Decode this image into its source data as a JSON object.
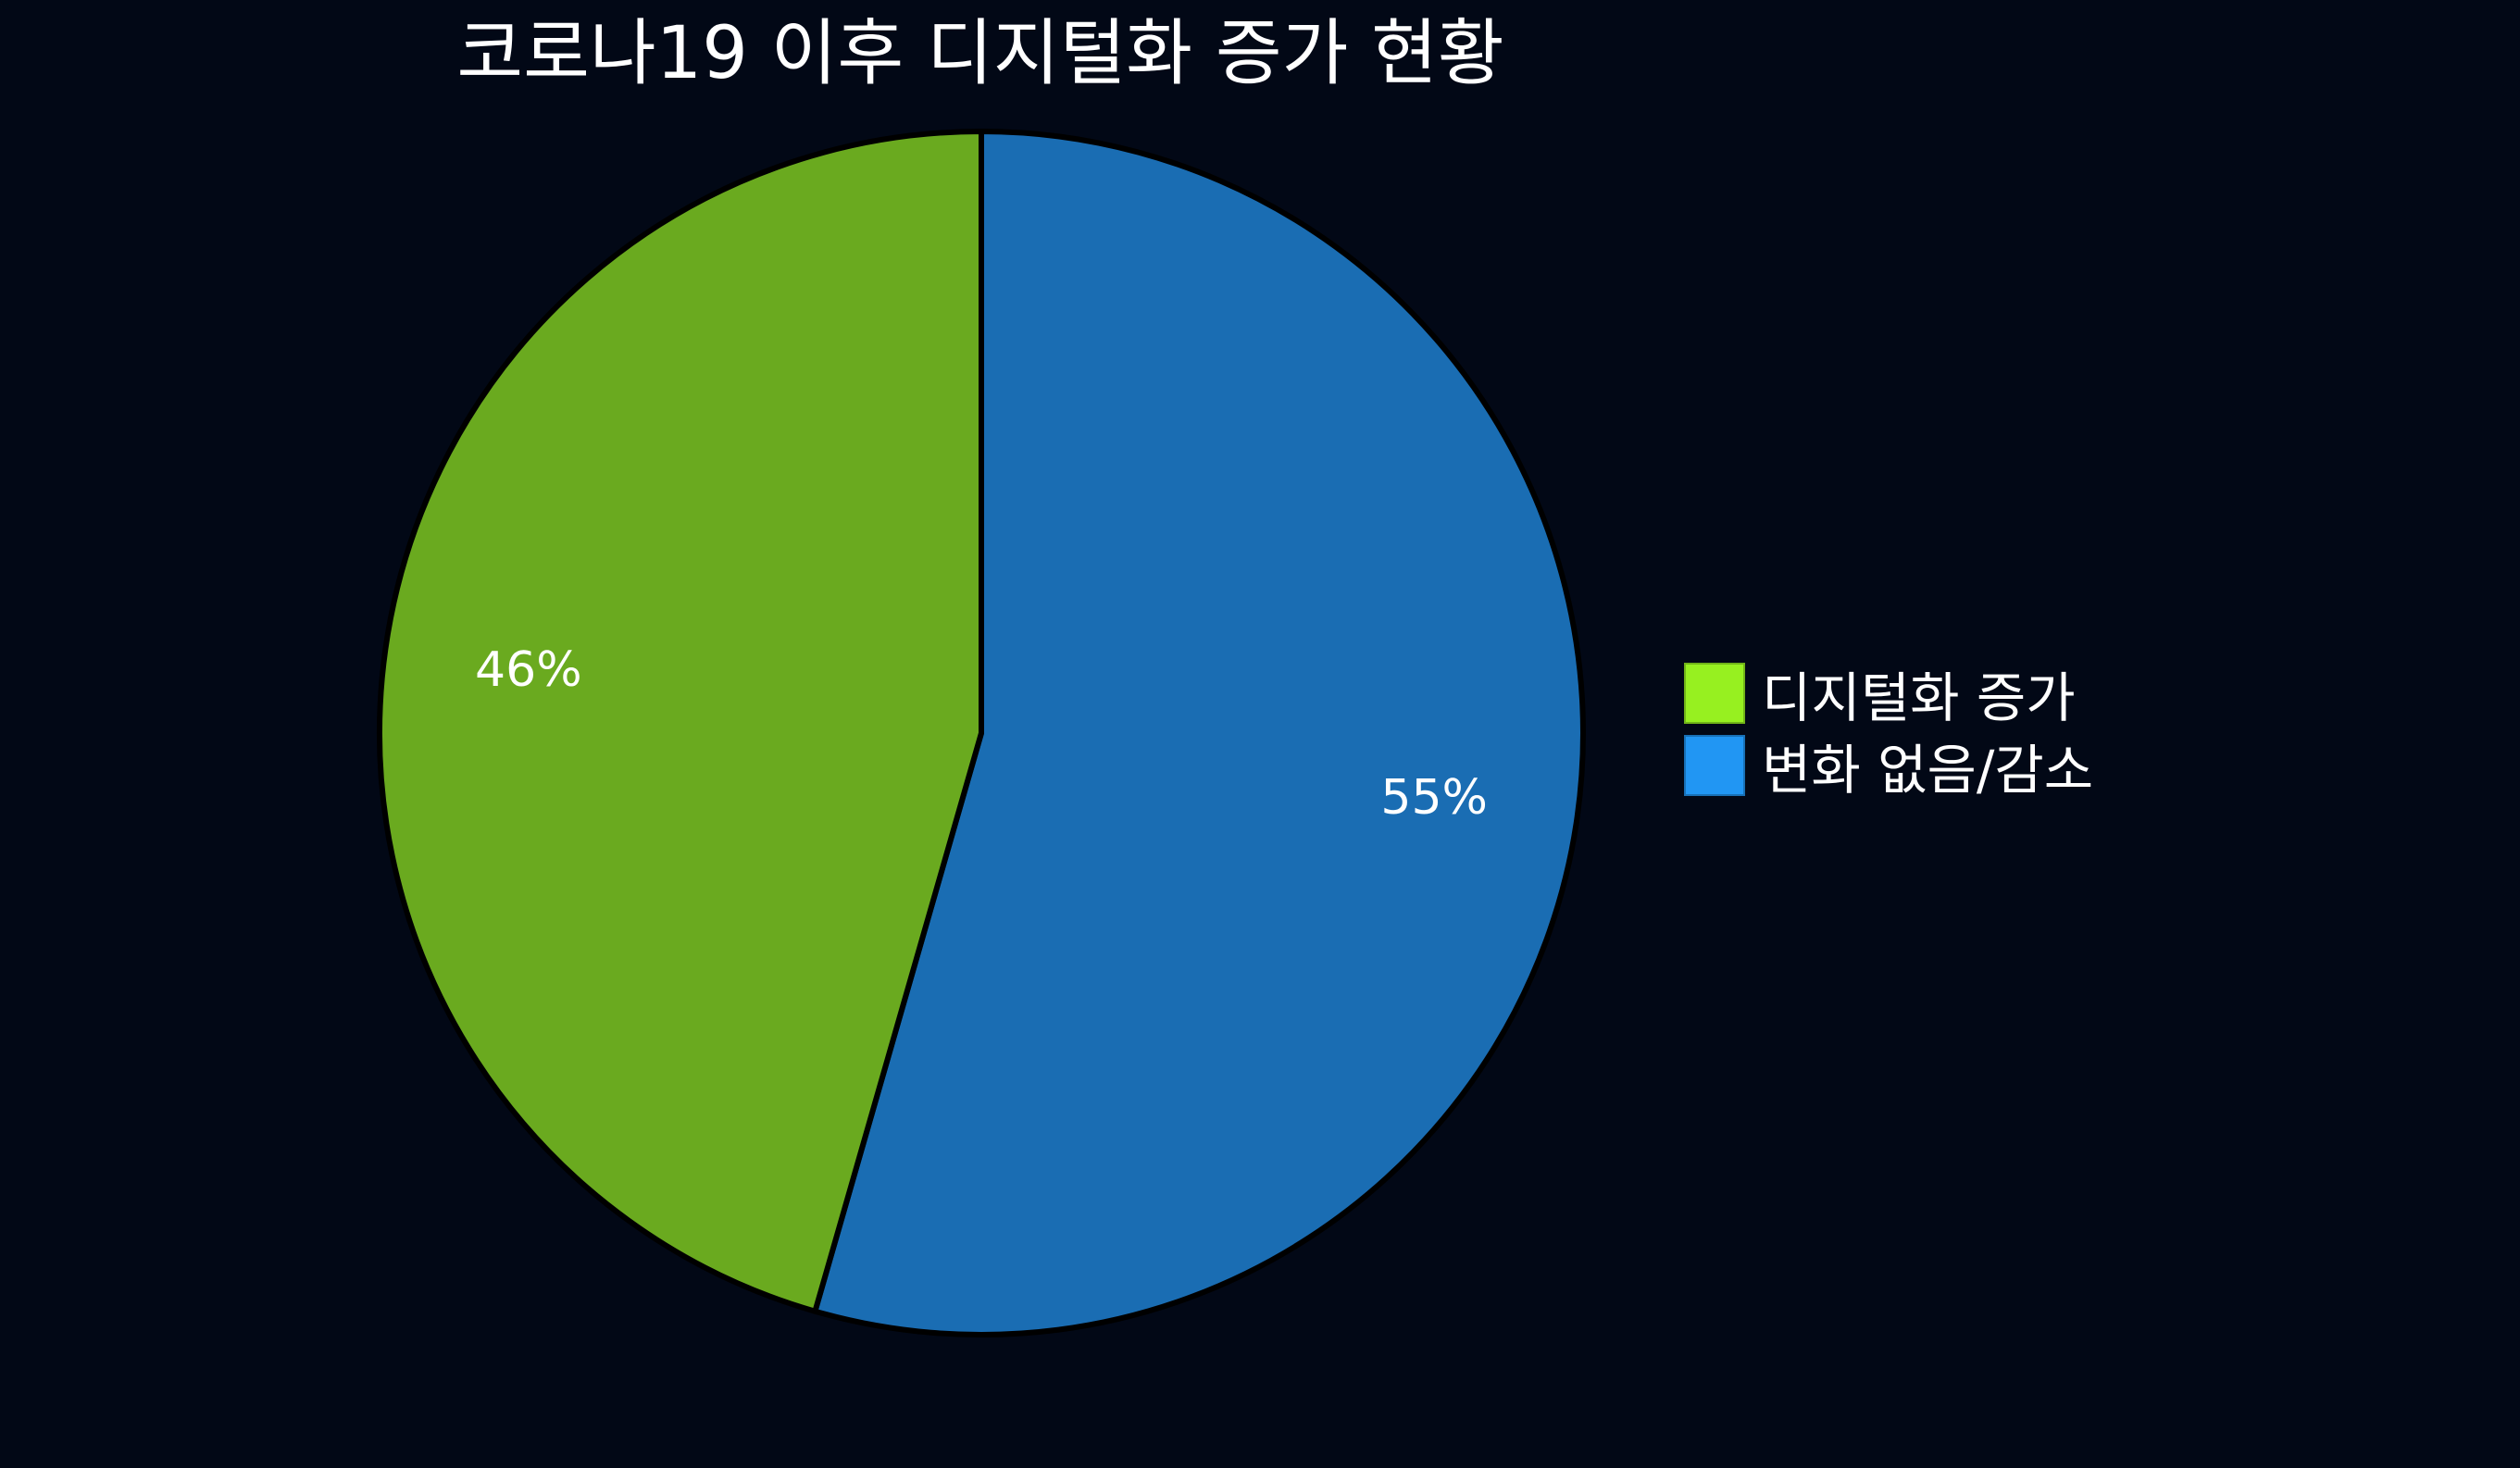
{
  "chart_data": {
    "type": "pie",
    "title": "코로나19 이후 디지털화 증가 현황",
    "slices": [
      {
        "label": "변화 없음/감소",
        "value": 55,
        "data_label": "55%",
        "color": "#1a6db3",
        "legend_color": "#2196f3"
      },
      {
        "label": "디지털화 증가",
        "value": 46,
        "data_label": "46%",
        "color": "#6aaa1f",
        "legend_color": "#97f020"
      }
    ],
    "start_angle": "top",
    "direction": "clockwise",
    "legend_placement": "right",
    "legend_order": [
      "디지털화 증가",
      "변화 없음/감소"
    ],
    "background": "#020816"
  }
}
